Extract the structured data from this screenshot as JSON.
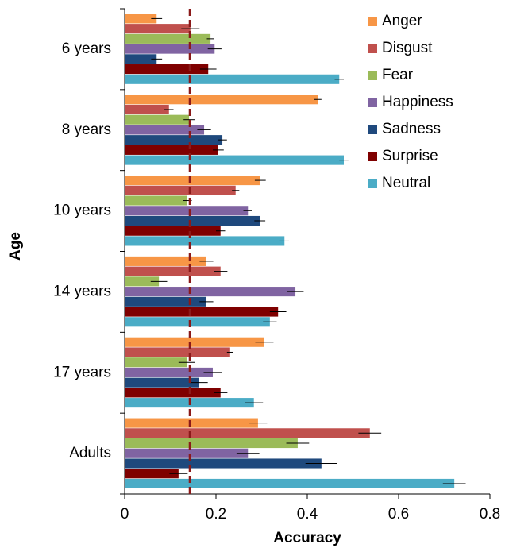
{
  "chart_data": {
    "type": "bar",
    "orientation": "horizontal",
    "y_label": "Age",
    "x_label": "Accuracy",
    "categories": [
      "6 years",
      "8 years",
      "10 years",
      "14 years",
      "17 years",
      "Adults"
    ],
    "series": [
      {
        "name": "Anger",
        "color": "#f79646",
        "values": [
          0.07,
          0.423,
          0.297,
          0.179,
          0.306,
          0.292
        ],
        "errors": [
          0.012,
          0.008,
          0.012,
          0.015,
          0.02,
          0.02
        ]
      },
      {
        "name": "Disgust",
        "color": "#c0504d",
        "values": [
          0.144,
          0.097,
          0.243,
          0.21,
          0.231,
          0.537
        ],
        "errors": [
          0.02,
          0.01,
          0.008,
          0.015,
          0.007,
          0.025
        ]
      },
      {
        "name": "Fear",
        "color": "#9bbb59",
        "values": [
          0.188,
          0.141,
          0.137,
          0.075,
          0.136,
          0.379
        ],
        "errors": [
          0.008,
          0.012,
          0.01,
          0.018,
          0.018,
          0.025
        ]
      },
      {
        "name": "Happiness",
        "color": "#8064a2",
        "values": [
          0.197,
          0.174,
          0.27,
          0.374,
          0.193,
          0.27
        ],
        "errors": [
          0.015,
          0.015,
          0.01,
          0.018,
          0.02,
          0.025
        ]
      },
      {
        "name": "Sadness",
        "color": "#1f497d",
        "values": [
          0.07,
          0.214,
          0.296,
          0.179,
          0.162,
          0.431
        ],
        "errors": [
          0.012,
          0.01,
          0.012,
          0.015,
          0.02,
          0.035
        ]
      },
      {
        "name": "Surprise",
        "color": "#7f0000",
        "values": [
          0.183,
          0.205,
          0.21,
          0.336,
          0.21,
          0.118
        ],
        "errors": [
          0.018,
          0.012,
          0.01,
          0.018,
          0.015,
          0.02
        ]
      },
      {
        "name": "Neutral",
        "color": "#4bacc6",
        "values": [
          0.47,
          0.48,
          0.35,
          0.318,
          0.283,
          0.722
        ],
        "errors": [
          0.01,
          0.01,
          0.01,
          0.015,
          0.02,
          0.025
        ]
      }
    ],
    "xlim": [
      0,
      0.8
    ],
    "xticks": [
      0,
      0.2,
      0.4,
      0.6,
      0.8
    ],
    "reference_line": {
      "value": 0.143,
      "color": "#8b1a1a"
    },
    "legend": "top-right"
  }
}
